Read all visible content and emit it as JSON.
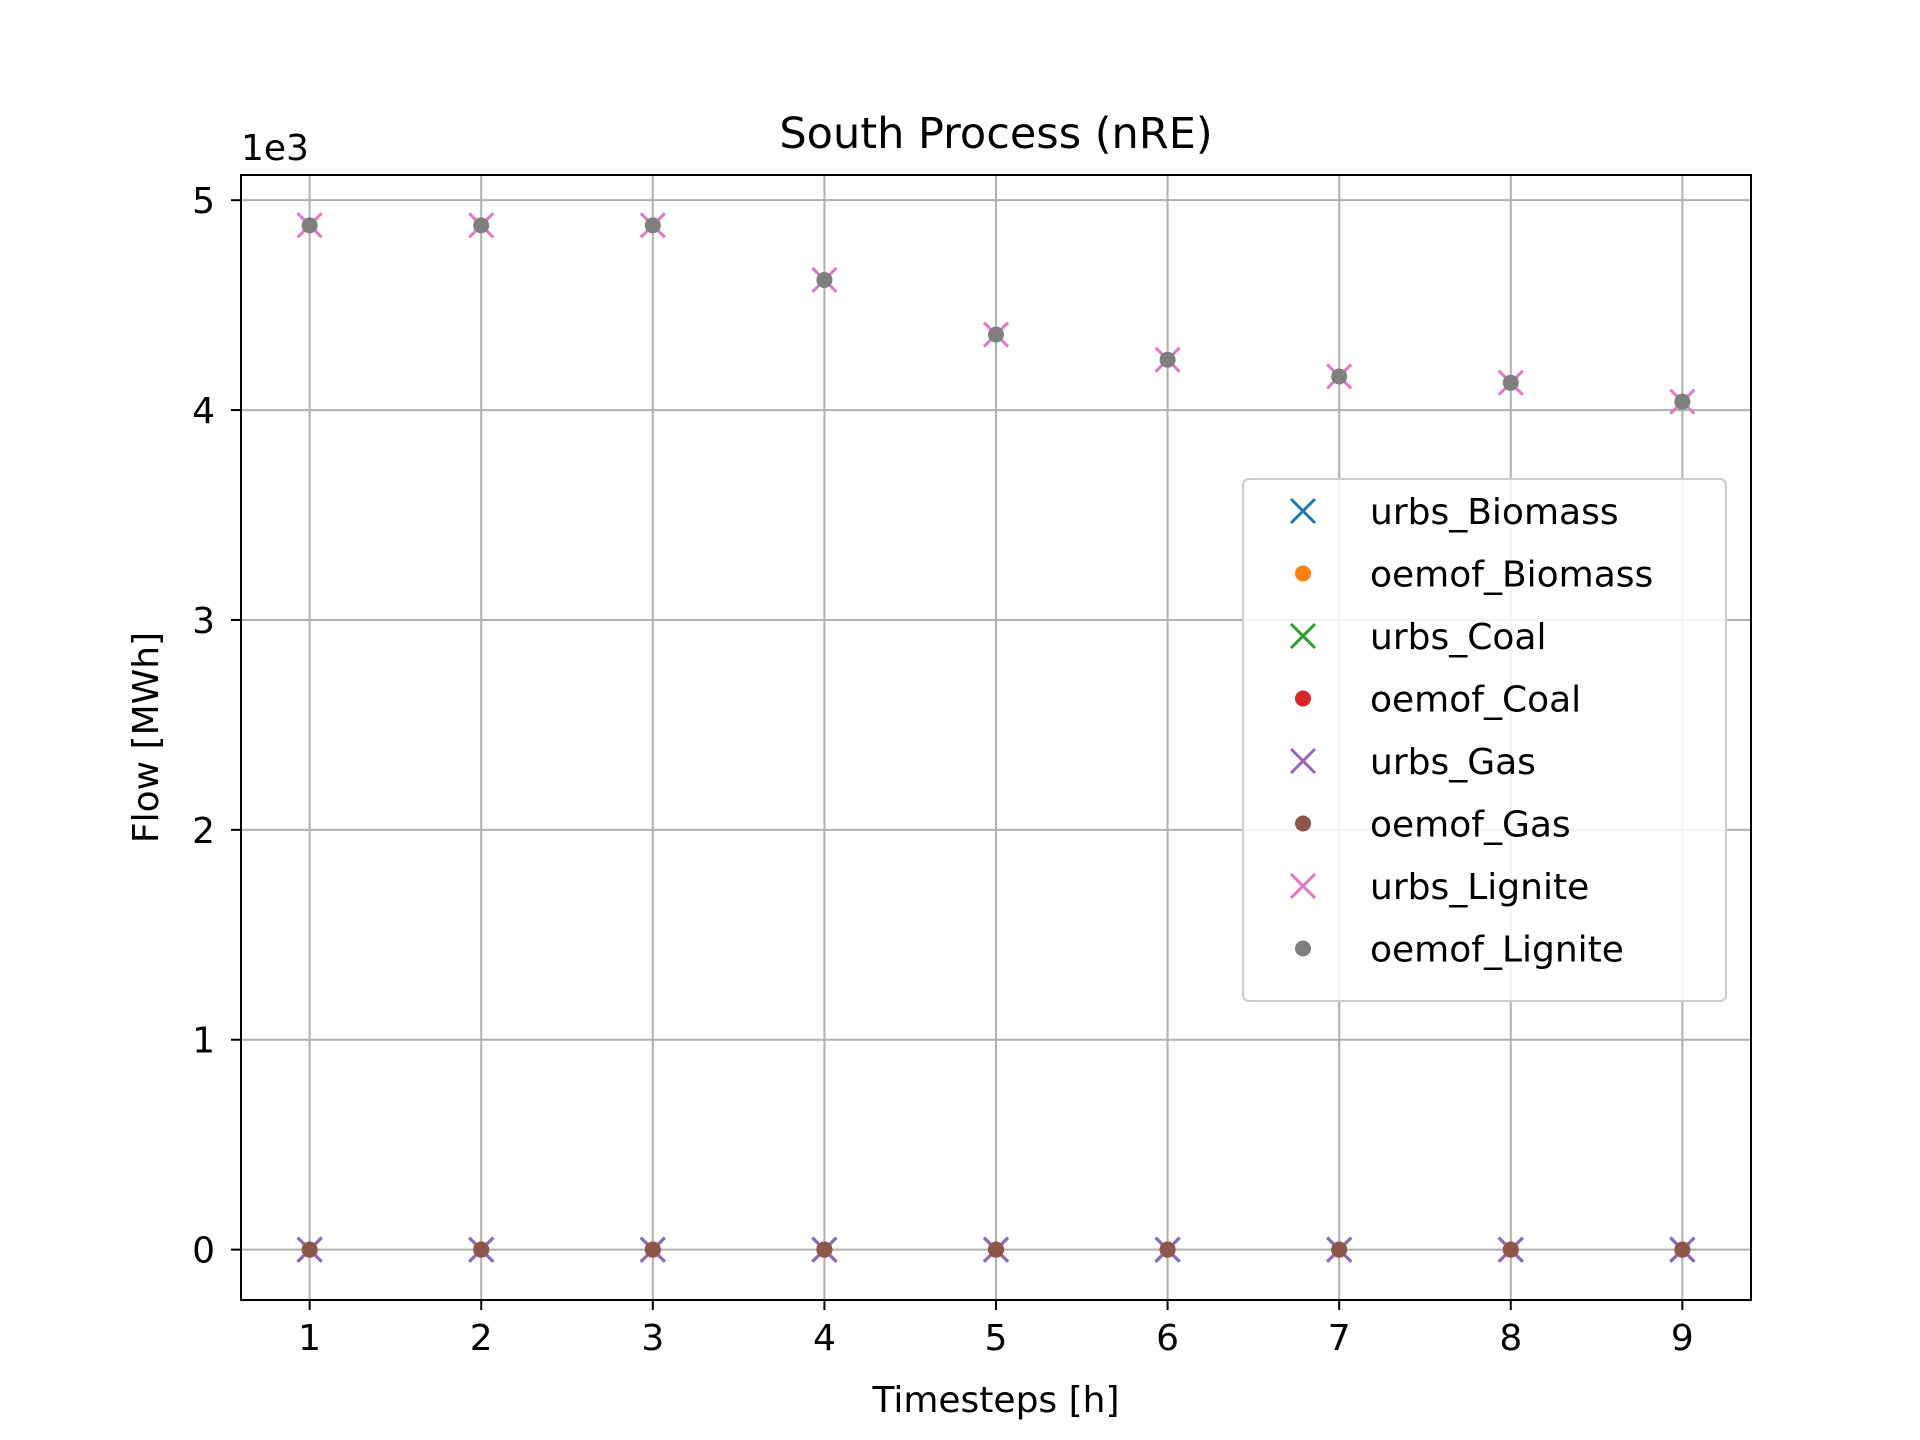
{
  "chart_data": {
    "type": "scatter",
    "title": "South Process (nRE)",
    "xlabel": "Timesteps [h]",
    "ylabel": "Flow [MWh]",
    "y_offset_text": "1e3",
    "y_scale_factor": 1000,
    "xlim": [
      0.6,
      9.4
    ],
    "ylim": [
      -240,
      5120
    ],
    "x_ticks": [
      1,
      2,
      3,
      4,
      5,
      6,
      7,
      8,
      9
    ],
    "y_ticks": [
      0,
      1,
      2,
      3,
      4,
      5
    ],
    "grid": true,
    "legend_position": "center-right",
    "x": [
      1,
      2,
      3,
      4,
      5,
      6,
      7,
      8,
      9
    ],
    "series": [
      {
        "name": "urbs_Biomass",
        "marker": "x",
        "color": "#1f77b4",
        "values": [
          0,
          0,
          0,
          0,
          0,
          0,
          0,
          0,
          0
        ]
      },
      {
        "name": "oemof_Biomass",
        "marker": "dot",
        "color": "#ff7f0e",
        "values": [
          0,
          0,
          0,
          0,
          0,
          0,
          0,
          0,
          0
        ]
      },
      {
        "name": "urbs_Coal",
        "marker": "x",
        "color": "#2ca02c",
        "values": [
          0,
          0,
          0,
          0,
          0,
          0,
          0,
          0,
          0
        ]
      },
      {
        "name": "oemof_Coal",
        "marker": "dot",
        "color": "#d62728",
        "values": [
          0,
          0,
          0,
          0,
          0,
          0,
          0,
          0,
          0
        ]
      },
      {
        "name": "urbs_Gas",
        "marker": "x",
        "color": "#9467bd",
        "values": [
          0,
          0,
          0,
          0,
          0,
          0,
          0,
          0,
          0
        ]
      },
      {
        "name": "oemof_Gas",
        "marker": "dot",
        "color": "#8c564b",
        "values": [
          0,
          0,
          0,
          0,
          0,
          0,
          0,
          0,
          0
        ]
      },
      {
        "name": "urbs_Lignite",
        "marker": "x",
        "color": "#e377c2",
        "values": [
          4880,
          4880,
          4880,
          4620,
          4360,
          4240,
          4160,
          4130,
          4040
        ]
      },
      {
        "name": "oemof_Lignite",
        "marker": "dot",
        "color": "#7f7f7f",
        "values": [
          4880,
          4880,
          4880,
          4620,
          4360,
          4240,
          4160,
          4130,
          4040
        ]
      }
    ]
  }
}
